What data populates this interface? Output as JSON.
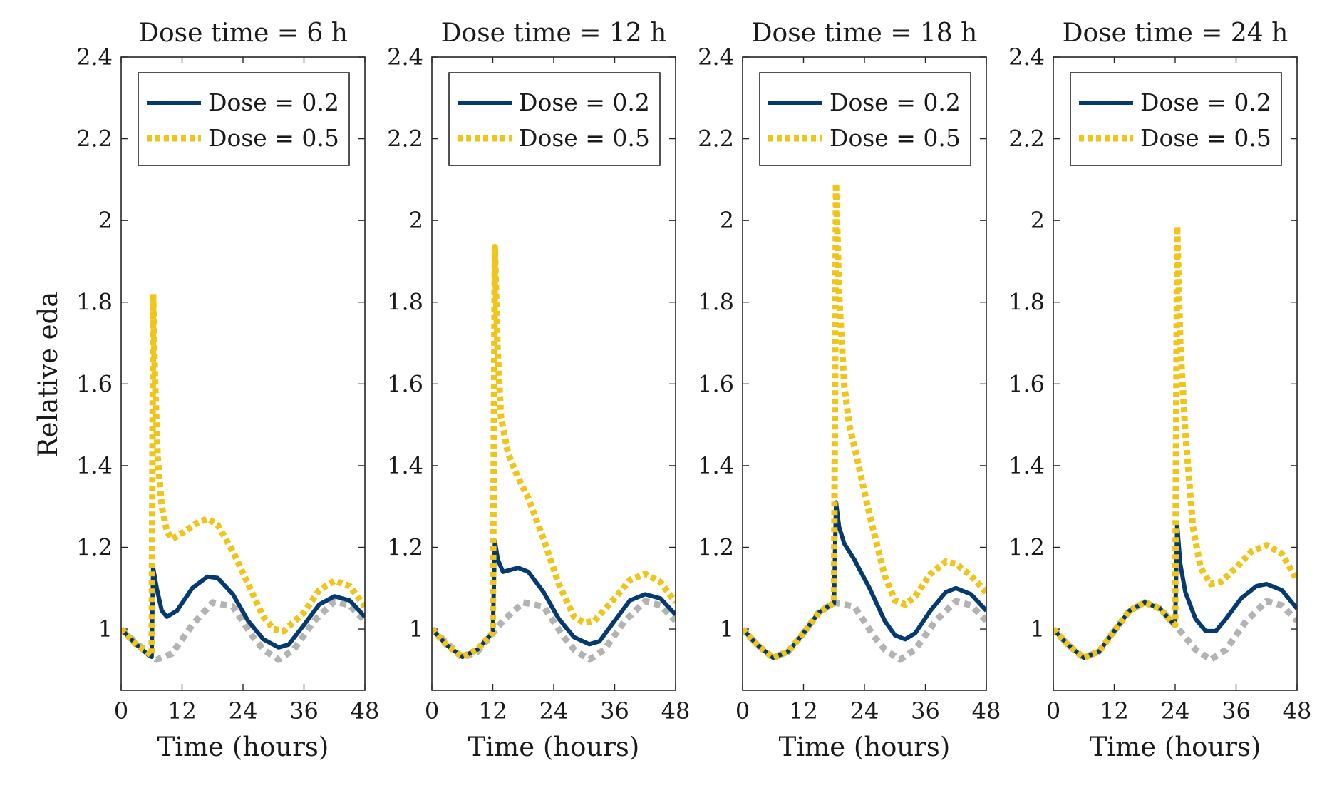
{
  "colors": {
    "dose_low": "#053a6e",
    "dose_high": "#f0c419",
    "baseline": "#b3b3b3",
    "axes": "#262626",
    "text": "#1a1a1a"
  },
  "chart_data": [
    {
      "type": "line",
      "title": "Dose time = 6 h",
      "xlabel": "Time (hours)",
      "ylabel": "Relative eda",
      "xlim": [
        0,
        48
      ],
      "ylim": [
        0.85,
        2.4
      ],
      "xticks": [
        "0",
        "12",
        "24",
        "36",
        "48"
      ],
      "yticks": [
        "1",
        "1.2",
        "1.4",
        "1.6",
        "1.8",
        "2",
        "2.2",
        "2.4"
      ],
      "legend_position": "top",
      "series": [
        {
          "name": "",
          "style": "dotted",
          "color_key": "baseline",
          "x": [
            0,
            3,
            6,
            7,
            10,
            14,
            18,
            22,
            26,
            28,
            31,
            34,
            38,
            42,
            45,
            48
          ],
          "y": [
            1.0,
            0.965,
            0.935,
            0.925,
            0.94,
            1.01,
            1.065,
            1.055,
            0.98,
            0.95,
            0.925,
            0.95,
            1.02,
            1.068,
            1.058,
            1.02
          ]
        },
        {
          "name": "Dose = 0.2",
          "style": "solid",
          "color_key": "dose_low",
          "x": [
            0,
            3,
            5.5,
            6,
            6.3,
            7,
            8,
            9,
            11,
            14,
            17,
            19,
            22,
            25,
            28,
            31,
            33,
            36,
            39,
            42,
            45,
            48
          ],
          "y": [
            1.0,
            0.962,
            0.935,
            0.932,
            1.15,
            1.1,
            1.045,
            1.03,
            1.045,
            1.1,
            1.128,
            1.125,
            1.085,
            1.02,
            0.975,
            0.955,
            0.962,
            1.01,
            1.06,
            1.08,
            1.07,
            1.03
          ]
        },
        {
          "name": "Dose = 0.5",
          "style": "dotted",
          "color_key": "dose_high",
          "x": [
            0,
            3,
            5.5,
            6,
            6.3,
            6.7,
            7.2,
            8,
            9,
            10,
            12,
            15,
            17,
            19,
            22,
            25,
            28,
            30,
            32,
            36,
            39,
            42,
            45,
            48
          ],
          "y": [
            1.0,
            0.962,
            0.94,
            0.935,
            1.82,
            1.6,
            1.42,
            1.3,
            1.24,
            1.22,
            1.235,
            1.26,
            1.27,
            1.255,
            1.19,
            1.11,
            1.03,
            1.0,
            0.995,
            1.04,
            1.095,
            1.118,
            1.105,
            1.055
          ]
        }
      ]
    },
    {
      "type": "line",
      "title": "Dose time = 12 h",
      "xlabel": "Time (hours)",
      "ylabel": "",
      "xlim": [
        0,
        48
      ],
      "ylim": [
        0.85,
        2.4
      ],
      "xticks": [
        "0",
        "12",
        "24",
        "36",
        "48"
      ],
      "yticks": [
        "1",
        "1.2",
        "1.4",
        "1.6",
        "1.8",
        "2",
        "2.2",
        "2.4"
      ],
      "legend_position": "top",
      "series": [
        {
          "name": "",
          "style": "dotted",
          "color_key": "baseline",
          "x": [
            0,
            3,
            6,
            9,
            12,
            14,
            18,
            22,
            26,
            28,
            31,
            34,
            38,
            42,
            45,
            48
          ],
          "y": [
            1.0,
            0.965,
            0.93,
            0.945,
            0.99,
            1.02,
            1.065,
            1.055,
            0.98,
            0.95,
            0.925,
            0.95,
            1.02,
            1.068,
            1.058,
            1.02
          ]
        },
        {
          "name": "Dose = 0.2",
          "style": "solid",
          "color_key": "dose_low",
          "x": [
            0,
            3,
            6,
            9,
            11.5,
            12,
            12.4,
            13,
            14,
            17,
            19,
            22,
            25,
            28,
            31,
            33,
            36,
            39,
            42,
            45,
            48
          ],
          "y": [
            1.0,
            0.96,
            0.932,
            0.95,
            0.985,
            0.99,
            1.215,
            1.17,
            1.14,
            1.15,
            1.14,
            1.09,
            1.025,
            0.98,
            0.963,
            0.97,
            1.02,
            1.07,
            1.085,
            1.075,
            1.035
          ]
        },
        {
          "name": "Dose = 0.5",
          "style": "dotted",
          "color_key": "dose_high",
          "x": [
            0,
            3,
            6,
            9,
            11.5,
            12,
            12.4,
            12.9,
            13.6,
            15,
            17,
            19,
            22,
            25,
            28,
            30,
            32,
            36,
            39,
            42,
            45,
            48
          ],
          "y": [
            1.0,
            0.96,
            0.932,
            0.95,
            0.985,
            0.99,
            1.935,
            1.7,
            1.52,
            1.43,
            1.37,
            1.32,
            1.22,
            1.11,
            1.03,
            1.015,
            1.02,
            1.075,
            1.12,
            1.135,
            1.115,
            1.065
          ]
        }
      ]
    },
    {
      "type": "line",
      "title": "Dose time = 18 h",
      "xlabel": "Time (hours)",
      "ylabel": "",
      "xlim": [
        0,
        48
      ],
      "ylim": [
        0.85,
        2.4
      ],
      "xticks": [
        "0",
        "12",
        "24",
        "36",
        "48"
      ],
      "yticks": [
        "1",
        "1.2",
        "1.4",
        "1.6",
        "1.8",
        "2",
        "2.2",
        "2.4"
      ],
      "legend_position": "top",
      "series": [
        {
          "name": "",
          "style": "dotted",
          "color_key": "baseline",
          "x": [
            0,
            3,
            6,
            9,
            12,
            15,
            18,
            22,
            26,
            28,
            31,
            34,
            38,
            42,
            45,
            48
          ],
          "y": [
            1.0,
            0.96,
            0.93,
            0.945,
            0.99,
            1.04,
            1.065,
            1.055,
            0.98,
            0.95,
            0.925,
            0.95,
            1.02,
            1.068,
            1.058,
            1.02
          ]
        },
        {
          "name": "Dose = 0.2",
          "style": "solid",
          "color_key": "dose_low",
          "x": [
            0,
            3,
            6,
            9,
            12,
            15,
            17.5,
            18,
            18.4,
            19,
            20,
            22,
            25,
            28,
            30,
            32,
            34,
            37,
            40,
            42,
            45,
            48
          ],
          "y": [
            1.0,
            0.96,
            0.93,
            0.945,
            0.99,
            1.04,
            1.06,
            1.063,
            1.31,
            1.25,
            1.21,
            1.17,
            1.1,
            1.02,
            0.985,
            0.975,
            0.99,
            1.045,
            1.09,
            1.1,
            1.085,
            1.045
          ]
        },
        {
          "name": "Dose = 0.5",
          "style": "dotted",
          "color_key": "dose_high",
          "x": [
            0,
            3,
            6,
            9,
            12,
            15,
            17.5,
            18,
            18.4,
            19,
            20,
            21,
            22.5,
            25,
            28,
            30,
            32,
            34,
            37,
            40,
            42,
            45,
            48
          ],
          "y": [
            1.0,
            0.96,
            0.93,
            0.945,
            0.99,
            1.04,
            1.06,
            1.063,
            2.09,
            1.82,
            1.6,
            1.5,
            1.42,
            1.28,
            1.13,
            1.07,
            1.06,
            1.08,
            1.135,
            1.165,
            1.16,
            1.13,
            1.09
          ]
        }
      ]
    },
    {
      "type": "line",
      "title": "Dose time = 24 h",
      "xlabel": "Time (hours)",
      "ylabel": "",
      "xlim": [
        0,
        48
      ],
      "ylim": [
        0.85,
        2.4
      ],
      "xticks": [
        "0",
        "12",
        "24",
        "36",
        "48"
      ],
      "yticks": [
        "1",
        "1.2",
        "1.4",
        "1.6",
        "1.8",
        "2",
        "2.2",
        "2.4"
      ],
      "legend_position": "top",
      "series": [
        {
          "name": "",
          "style": "dotted",
          "color_key": "baseline",
          "x": [
            0,
            3,
            6,
            9,
            12,
            15,
            18,
            21,
            24,
            26,
            28,
            31,
            34,
            38,
            42,
            45,
            48
          ],
          "y": [
            1.0,
            0.96,
            0.93,
            0.945,
            0.995,
            1.045,
            1.065,
            1.05,
            1.01,
            0.98,
            0.95,
            0.925,
            0.95,
            1.02,
            1.068,
            1.058,
            1.02
          ]
        },
        {
          "name": "Dose = 0.2",
          "style": "solid",
          "color_key": "dose_low",
          "x": [
            0,
            3,
            6,
            9,
            12,
            15,
            18,
            21,
            23.5,
            24,
            24.4,
            25,
            26,
            28,
            30,
            32,
            34,
            37,
            40,
            42,
            45,
            48
          ],
          "y": [
            1.0,
            0.96,
            0.93,
            0.945,
            0.995,
            1.045,
            1.065,
            1.05,
            1.015,
            1.01,
            1.255,
            1.16,
            1.09,
            1.025,
            0.995,
            0.995,
            1.025,
            1.075,
            1.105,
            1.11,
            1.095,
            1.05
          ]
        },
        {
          "name": "Dose = 0.5",
          "style": "dotted",
          "color_key": "dose_high",
          "x": [
            0,
            3,
            6,
            9,
            12,
            15,
            18,
            21,
            23.5,
            24,
            24.4,
            25,
            26,
            27.5,
            29,
            31,
            33,
            36,
            39,
            42,
            45,
            48
          ],
          "y": [
            1.0,
            0.96,
            0.93,
            0.945,
            0.995,
            1.045,
            1.065,
            1.05,
            1.015,
            1.01,
            1.985,
            1.7,
            1.48,
            1.25,
            1.15,
            1.11,
            1.115,
            1.15,
            1.19,
            1.205,
            1.185,
            1.12
          ]
        }
      ]
    }
  ]
}
